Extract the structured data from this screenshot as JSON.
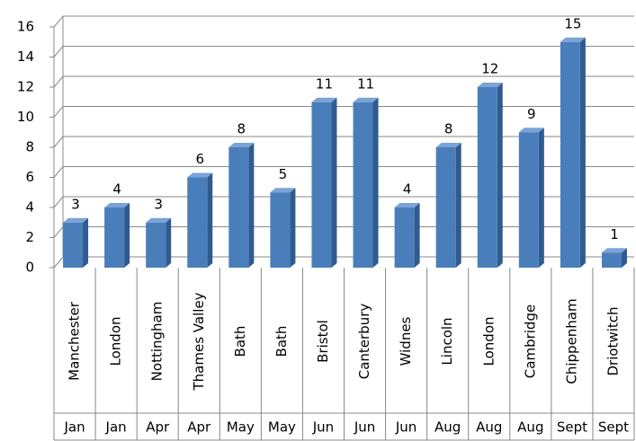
{
  "chart_data": {
    "type": "bar",
    "categories": [
      "Manchester",
      "London",
      "Nottingham",
      "Thames Valley",
      "Bath",
      "Bath",
      "Bristol",
      "Canterbury",
      "Widnes",
      "Lincoln",
      "London",
      "Cambridge",
      "Chippenham",
      "Driotwitch"
    ],
    "months": [
      "Jan",
      "Jan",
      "Apr",
      "Apr",
      "May",
      "May",
      "Jun",
      "Jun",
      "Jun",
      "Aug",
      "Aug",
      "Aug",
      "Sept",
      "Sept"
    ],
    "values": [
      3,
      4,
      3,
      6,
      8,
      5,
      11,
      11,
      4,
      8,
      12,
      9,
      15,
      1
    ],
    "color": "#4a7ebb",
    "ylim": [
      0,
      16
    ],
    "yticks": [
      0,
      2,
      4,
      6,
      8,
      10,
      12,
      14,
      16
    ],
    "grid": true
  }
}
